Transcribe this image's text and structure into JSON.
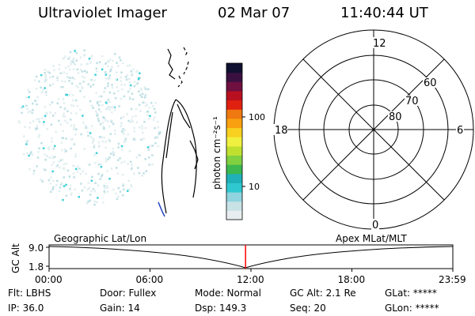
{
  "header": {
    "instrument": "Ultraviolet Imager",
    "date": "02 Mar 07",
    "time": "11:40:44 UT"
  },
  "colorbar": {
    "unit_label": "photon cm⁻²s⁻¹",
    "ticks": [
      "100",
      "10"
    ],
    "colors": [
      "#e8eef0",
      "#c8e2e6",
      "#8fd4de",
      "#30c8d0",
      "#20b0b8",
      "#3cb850",
      "#80d040",
      "#c0e030",
      "#f0f040",
      "#f8d020",
      "#f8a010",
      "#f07810",
      "#e02010",
      "#b81020",
      "#701040",
      "#3a1040",
      "#101030"
    ]
  },
  "polar_grid": {
    "mlt_labels": [
      "12",
      "18",
      "6",
      "0"
    ],
    "lat_labels": [
      "60",
      "70",
      "80"
    ]
  },
  "timeline": {
    "y_axis_label": "GC Alt",
    "y_ticks": [
      "9.0",
      "1.8"
    ],
    "left_label": "Geographic Lat/Lon",
    "right_label": "Apex MLat/MLT",
    "x_ticks": [
      "00:00",
      "06:00",
      "12:00",
      "18:00",
      "23:59"
    ],
    "current_time_fraction": 0.4866,
    "marker_color": "#ff0000"
  },
  "footer": {
    "flt": "Flt: LBHS",
    "ip": "IP: 36.0",
    "door": "Door: Fullex",
    "gain": "Gain: 14",
    "mode": "Mode: Normal",
    "dsp": "Dsp:   149.3",
    "gc_alt": "GC Alt: 2.1 Re",
    "seq": "Seq: 20",
    "glat": "GLat: *****",
    "glon": "GLon: *****"
  }
}
